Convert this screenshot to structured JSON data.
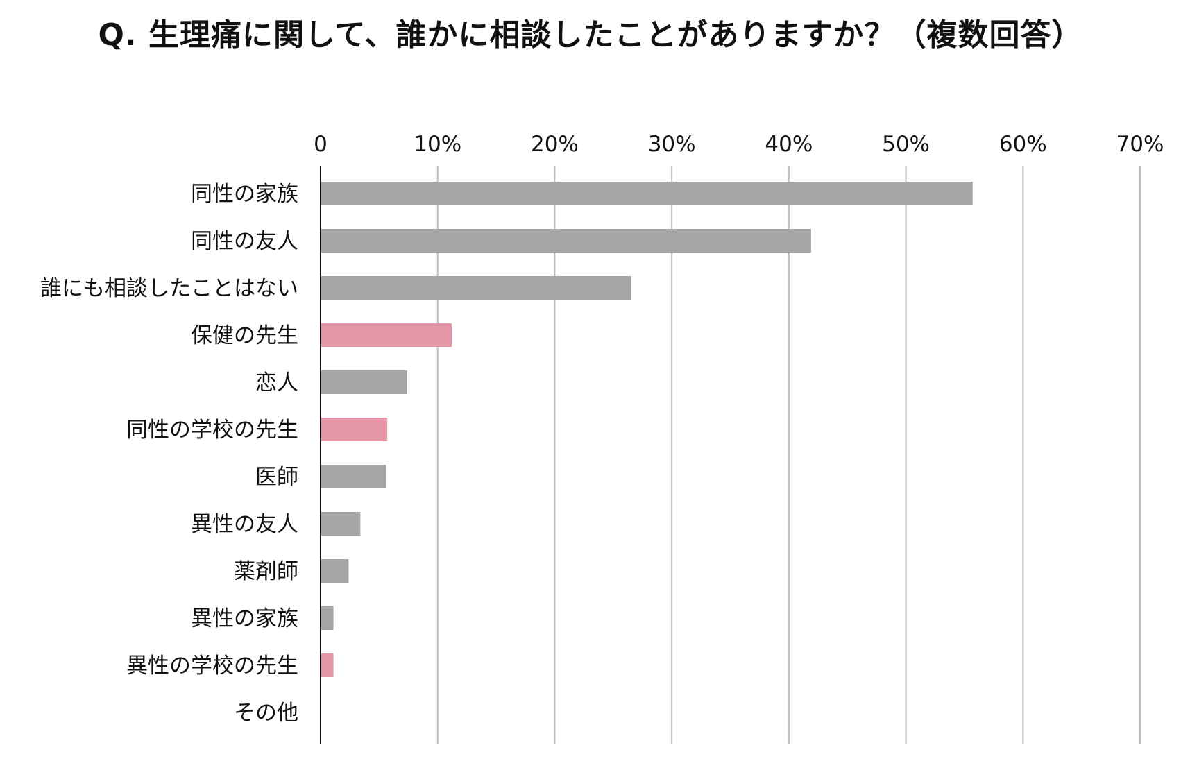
{
  "chart_data": {
    "type": "bar",
    "orientation": "horizontal",
    "title": "Q. 生理痛に関して、誰かに相談したことがありますか？（複数回答）",
    "xlabel": "",
    "ylabel": "",
    "xlim": [
      0,
      70
    ],
    "grid": true,
    "x_ticks": [
      {
        "value": 0,
        "label": "0"
      },
      {
        "value": 10,
        "label": "10%"
      },
      {
        "value": 20,
        "label": "20%"
      },
      {
        "value": 30,
        "label": "30%"
      },
      {
        "value": 40,
        "label": "40%"
      },
      {
        "value": 50,
        "label": "50%"
      },
      {
        "value": 60,
        "label": "60%"
      },
      {
        "value": 70,
        "label": "70%"
      }
    ],
    "categories": [
      "同性の家族",
      "同性の友人",
      "誰にも相談したことはない",
      "保健の先生",
      "恋人",
      "同性の学校の先生",
      "医師",
      "異性の友人",
      "薬剤師",
      "異性の家族",
      "異性の学校の先生",
      "その他"
    ],
    "values": [
      55.7,
      41.9,
      26.5,
      11.2,
      7.4,
      5.7,
      5.6,
      3.4,
      2.4,
      1.1,
      1.1,
      0
    ],
    "highlight": [
      false,
      false,
      false,
      true,
      false,
      true,
      false,
      false,
      false,
      false,
      true,
      false
    ],
    "colors": {
      "default_bar": "#a6a6a6",
      "highlight_bar": "#e596a7",
      "gridline": "#bdbdbd",
      "axis": "#111111",
      "text": "#111111"
    }
  }
}
